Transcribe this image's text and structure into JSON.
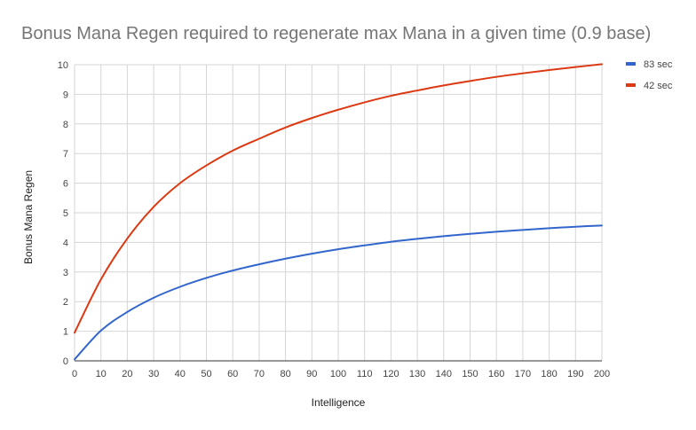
{
  "chart_data": {
    "type": "line",
    "title": "Bonus Mana Regen required to regenerate max Mana in a given time (0.9 base)",
    "xlabel": "Intelligence",
    "ylabel": "Bonus Mana Regen",
    "xlim": [
      0,
      200
    ],
    "ylim": [
      0,
      10
    ],
    "x_ticks": [
      "0",
      "10",
      "20",
      "30",
      "40",
      "50",
      "60",
      "70",
      "80",
      "90",
      "100",
      "110",
      "120",
      "130",
      "140",
      "150",
      "160",
      "170",
      "180",
      "190",
      "200"
    ],
    "y_ticks": [
      "0",
      "1",
      "2",
      "3",
      "4",
      "5",
      "6",
      "7",
      "8",
      "9",
      "10"
    ],
    "grid": true,
    "legend_position": "right",
    "x": [
      0,
      10,
      20,
      30,
      40,
      50,
      60,
      70,
      80,
      90,
      100,
      110,
      120,
      130,
      140,
      150,
      160,
      170,
      180,
      190,
      200
    ],
    "series": [
      {
        "name": "83 sec",
        "color": "#3366cc",
        "values": [
          0.05,
          1.02,
          1.65,
          2.13,
          2.5,
          2.8,
          3.05,
          3.26,
          3.45,
          3.62,
          3.77,
          3.9,
          4.02,
          4.12,
          4.21,
          4.29,
          4.36,
          4.42,
          4.48,
          4.53,
          4.57
        ]
      },
      {
        "name": "42 sec",
        "color": "#dc3912",
        "values": [
          0.95,
          2.75,
          4.13,
          5.2,
          6.0,
          6.6,
          7.1,
          7.5,
          7.88,
          8.2,
          8.48,
          8.73,
          8.95,
          9.13,
          9.3,
          9.45,
          9.59,
          9.71,
          9.82,
          9.92,
          10.02
        ]
      }
    ]
  }
}
